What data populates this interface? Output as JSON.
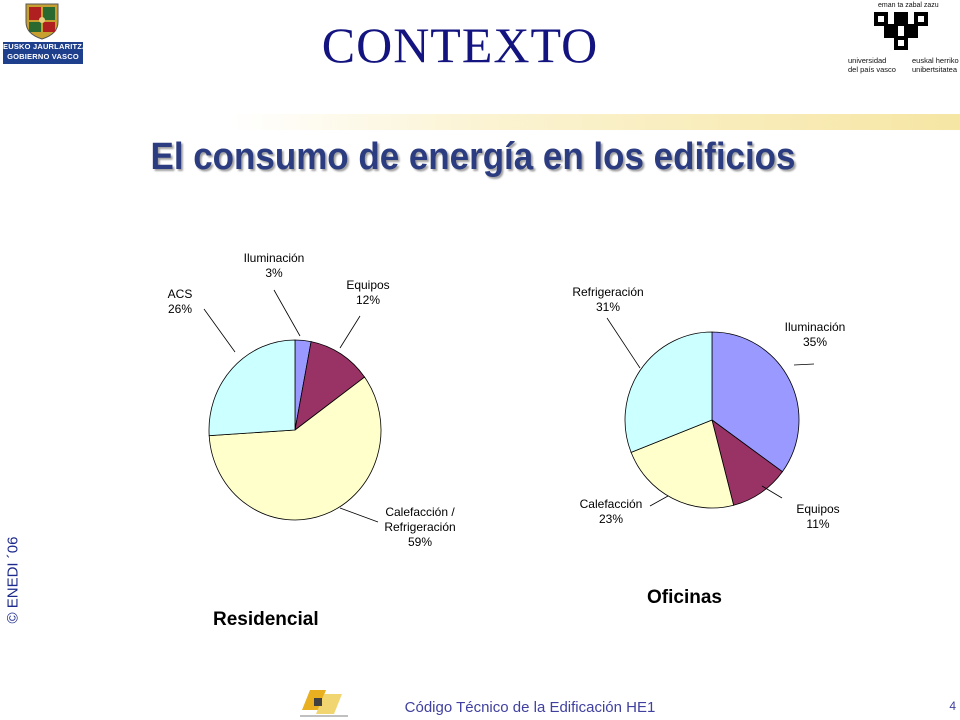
{
  "header": {
    "title": "CONTEXTO",
    "subtitle": "El consumo de energía en los edificios"
  },
  "logos": {
    "left": {
      "line1": "EUSKO JAURLARITZA",
      "line2": "GOBIERNO VASCO"
    },
    "right": {
      "top": "eman ta zabal zazu",
      "left_line1": "universidad",
      "left_line2": "del país vasco",
      "right_line1": "euskal herriko",
      "right_line2": "unibertsitatea"
    }
  },
  "chart_data": [
    {
      "type": "pie",
      "title": "Residencial",
      "start_angle_deg": 0,
      "slices": [
        {
          "label": "Iluminación",
          "value": 3,
          "pct": "3%",
          "color": "#9999ff"
        },
        {
          "label": "Equipos",
          "value": 12,
          "pct": "12%",
          "color": "#993366"
        },
        {
          "label": "Calefacción / Refrigeración",
          "value": 59,
          "pct": "59%",
          "color": "#ffffcc"
        },
        {
          "label": "ACS",
          "value": 26,
          "pct": "26%",
          "color": "#ccffff"
        }
      ]
    },
    {
      "type": "pie",
      "title": "Oficinas",
      "start_angle_deg": 0,
      "slices": [
        {
          "label": "Iluminación",
          "value": 35,
          "pct": "35%",
          "color": "#9999ff"
        },
        {
          "label": "Equipos",
          "value": 11,
          "pct": "11%",
          "color": "#993366"
        },
        {
          "label": "Calefacción",
          "value": 23,
          "pct": "23%",
          "color": "#ffffcc"
        },
        {
          "label": "Refrigeración",
          "value": 31,
          "pct": "31%",
          "color": "#ccffff"
        }
      ]
    }
  ],
  "side": {
    "copyright": "© ENEDI ´06"
  },
  "footer": {
    "text": "Código Técnico de la Edificación HE1",
    "page_number": "4"
  }
}
